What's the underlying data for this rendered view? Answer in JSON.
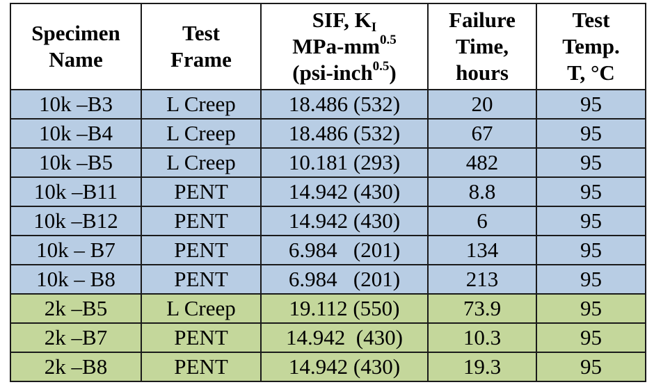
{
  "headers": {
    "specimen": [
      "Specimen",
      "Name"
    ],
    "frame": [
      "Test",
      "Frame"
    ],
    "sif": {
      "line1_main": "SIF, K",
      "line1_sub": "I",
      "line2_main": "MPa-mm",
      "line2_sup": "0.5",
      "line3_main": "(psi-inch",
      "line3_sup": "0.5",
      "line3_end": ")"
    },
    "failure": [
      "Failure",
      "Time,",
      "hours"
    ],
    "temp": [
      "Test",
      "Temp.",
      "T, °C"
    ]
  },
  "rows": [
    {
      "group": "blue",
      "name": "10k –B3",
      "frame": "L Creep",
      "sif": "18.486 (532)",
      "time": "20",
      "temp": "95"
    },
    {
      "group": "blue",
      "name": "10k –B4",
      "frame": "L Creep",
      "sif": "18.486 (532)",
      "time": "67",
      "temp": "95"
    },
    {
      "group": "blue",
      "name": "10k –B5",
      "frame": "L Creep",
      "sif": "10.181 (293)",
      "time": "482",
      "temp": "95"
    },
    {
      "group": "blue",
      "name": "10k –B11",
      "frame": "PENT",
      "sif": "14.942 (430)",
      "time": "8.8",
      "temp": "95"
    },
    {
      "group": "blue",
      "name": "10k –B12",
      "frame": "PENT",
      "sif": "14.942 (430)",
      "time": "6",
      "temp": "95"
    },
    {
      "group": "blue",
      "name": "10k – B7",
      "frame": "PENT",
      "sif": "6.984   (201)",
      "time": "134",
      "temp": "95"
    },
    {
      "group": "blue",
      "name": "10k – B8",
      "frame": "PENT",
      "sif": "6.984   (201)",
      "time": "213",
      "temp": "95"
    },
    {
      "group": "green",
      "name": "2k –B5",
      "frame": "L Creep",
      "sif": "19.112 (550)",
      "time": "73.9",
      "temp": "95"
    },
    {
      "group": "green",
      "name": "2k –B7",
      "frame": "PENT",
      "sif": "14.942  (430)",
      "time": "10.3",
      "temp": "95"
    },
    {
      "group": "green",
      "name": "2k –B8",
      "frame": "PENT",
      "sif": "14.942 (430)",
      "time": "19.3",
      "temp": "95"
    }
  ],
  "colors": {
    "blue_row": "#b8cde4",
    "green_row": "#c4d79b",
    "border": "#1a1a1a"
  }
}
